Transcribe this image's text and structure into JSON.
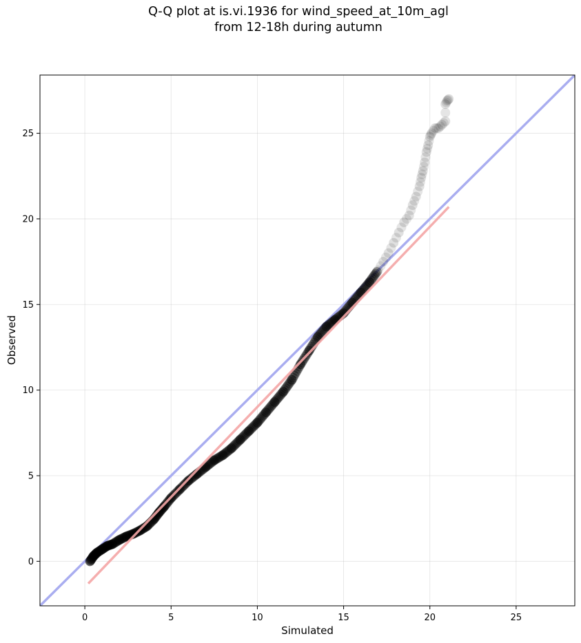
{
  "chart_data": {
    "type": "scatter",
    "title": "Q-Q plot at is.vi.1936 for wind_speed_at_10m_agl",
    "subtitle": "from 12-18h during autumn",
    "xlabel": "Simulated",
    "ylabel": "Observed",
    "xlim": [
      -2.6,
      28.4
    ],
    "ylim": [
      -2.6,
      28.4
    ],
    "xticks": [
      "0",
      "5",
      "10",
      "15",
      "20",
      "25"
    ],
    "yticks": [
      "0",
      "5",
      "10",
      "15",
      "20",
      "25"
    ],
    "grid": true,
    "series": [
      {
        "kind": "quantiles",
        "color": "#000000",
        "points": [
          [
            0.3,
            0.0
          ],
          [
            0.5,
            0.3
          ],
          [
            0.7,
            0.5
          ],
          [
            1.0,
            0.7
          ],
          [
            1.3,
            0.9
          ],
          [
            1.6,
            1.0
          ],
          [
            2.0,
            1.25
          ],
          [
            2.4,
            1.45
          ],
          [
            2.8,
            1.6
          ],
          [
            3.2,
            1.8
          ],
          [
            3.6,
            2.05
          ],
          [
            4.0,
            2.45
          ],
          [
            4.3,
            2.85
          ],
          [
            4.6,
            3.2
          ],
          [
            5.0,
            3.7
          ],
          [
            5.5,
            4.2
          ],
          [
            6.0,
            4.7
          ],
          [
            6.5,
            5.1
          ],
          [
            7.0,
            5.5
          ],
          [
            7.5,
            5.9
          ],
          [
            8.0,
            6.2
          ],
          [
            8.5,
            6.6
          ],
          [
            9.0,
            7.1
          ],
          [
            9.5,
            7.6
          ],
          [
            10.0,
            8.1
          ],
          [
            10.5,
            8.7
          ],
          [
            11.0,
            9.3
          ],
          [
            11.5,
            9.9
          ],
          [
            12.0,
            10.6
          ],
          [
            12.5,
            11.5
          ],
          [
            13.0,
            12.3
          ],
          [
            13.5,
            13.1
          ],
          [
            14.0,
            13.7
          ],
          [
            14.5,
            14.1
          ],
          [
            15.0,
            14.5
          ],
          [
            15.5,
            15.1
          ],
          [
            16.0,
            15.7
          ],
          [
            16.5,
            16.3
          ],
          [
            17.0,
            17.0
          ],
          [
            17.3,
            17.5
          ],
          [
            17.6,
            18.0
          ],
          [
            17.9,
            18.6
          ],
          [
            18.2,
            19.2
          ],
          [
            18.5,
            19.8
          ],
          [
            18.8,
            20.2
          ],
          [
            19.0,
            20.8
          ],
          [
            19.2,
            21.3
          ],
          [
            19.4,
            21.9
          ],
          [
            19.5,
            22.4
          ],
          [
            19.6,
            22.8
          ],
          [
            19.7,
            23.3
          ],
          [
            19.8,
            23.9
          ],
          [
            19.9,
            24.3
          ],
          [
            20.0,
            24.8
          ],
          [
            20.1,
            25.0
          ],
          [
            20.3,
            25.3
          ],
          [
            20.5,
            25.3
          ],
          [
            20.7,
            25.5
          ],
          [
            20.9,
            25.7
          ],
          [
            20.9,
            26.7
          ],
          [
            21.0,
            26.9
          ],
          [
            21.1,
            27.0
          ]
        ]
      },
      {
        "kind": "identity",
        "color": "#a9adf0",
        "x": [
          -2.6,
          28.4
        ],
        "y": [
          -2.6,
          28.4
        ]
      },
      {
        "kind": "fit",
        "color": "#f4a6a6",
        "x": [
          0.2,
          21.1
        ],
        "y": [
          -1.3,
          20.7
        ]
      }
    ]
  }
}
